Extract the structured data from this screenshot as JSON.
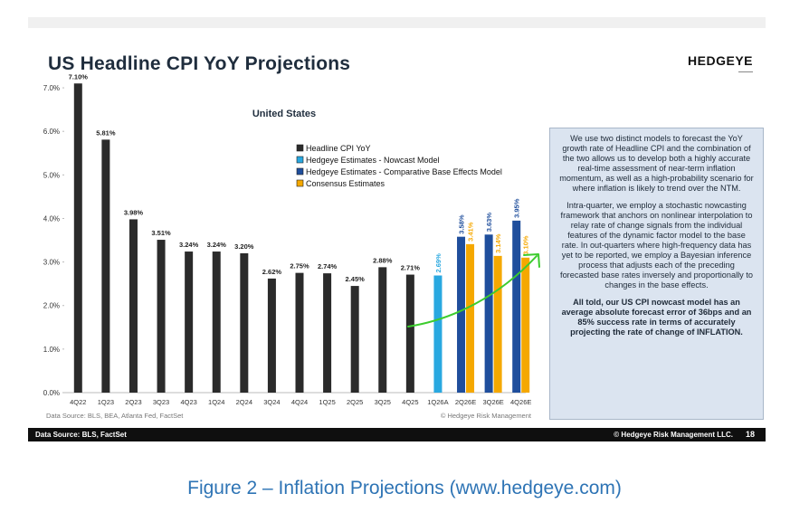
{
  "slide": {
    "title": "US Headline CPI YoY Projections",
    "brand": "HEDGEYE",
    "footer_left": "Data Source: BLS, FactSet",
    "footer_right": "© Hedgeye Risk Management LLC.",
    "page_number": "18"
  },
  "sidebar": {
    "paragraphs": [
      "We use two distinct models to forecast the YoY growth rate of Headline CPI and the combination of the two allows us to develop both a highly accurate real-time assessment of near-term inflation momentum, as well as a high-probability scenario for where inflation is likely to trend over the NTM.",
      "Intra-quarter, we employ a stochastic nowcasting framework that anchors on nonlinear interpolation to relay rate of change signals from the individual features of the dynamic factor model to the base rate. In out-quarters where high-frequency data has yet to be reported, we employ a Bayesian inference process that adjusts each of the preceding forecasted base rates inversely and proportionally to changes in the base effects."
    ],
    "bold_paragraph": "All told, our US CPI nowcast model has an average absolute forecast error of 36bps and an 85% success rate in terms of accurately projecting the rate of change of INFLATION."
  },
  "caption": "Figure 2 – Inflation Projections (www.hedgeye.com)",
  "chart_data": {
    "type": "bar",
    "title": "United States",
    "source_note": "Data Source: BLS, BEA, Atlanta Fed, FactSet",
    "copyright_note": "© Hedgeye Risk Management",
    "categories": [
      "4Q22",
      "1Q23",
      "2Q23",
      "3Q23",
      "4Q23",
      "1Q24",
      "2Q24",
      "3Q24",
      "4Q24",
      "1Q25",
      "2Q25",
      "3Q25",
      "4Q25",
      "1Q26A",
      "2Q26E",
      "3Q26E",
      "4Q26E"
    ],
    "ylim": [
      0,
      7.5
    ],
    "yticks": [
      0,
      1,
      2,
      3,
      4,
      5,
      6,
      7
    ],
    "ytick_labels": [
      "0.0%",
      "1.0%",
      "2.0%",
      "3.0%",
      "4.0%",
      "5.0%",
      "6.0%",
      "7.0%"
    ],
    "legend_position": "top-center",
    "grid": false,
    "series": [
      {
        "name": "Headline CPI YoY",
        "color": "#2b2b2b",
        "values": [
          7.1,
          5.81,
          3.98,
          3.51,
          3.24,
          3.24,
          3.2,
          2.62,
          2.75,
          2.74,
          2.45,
          2.88,
          2.71,
          null,
          null,
          null,
          null
        ],
        "labels": [
          "7.10%",
          "5.81%",
          "3.98%",
          "3.51%",
          "3.24%",
          "3.24%",
          "3.20%",
          "2.62%",
          "2.75%",
          "2.74%",
          "2.45%",
          "2.88%",
          "2.71%",
          "",
          "",
          "",
          ""
        ]
      },
      {
        "name": "Hedgeye Estimates - Nowcast Model",
        "color": "#29a8e0",
        "values": [
          null,
          null,
          null,
          null,
          null,
          null,
          null,
          null,
          null,
          null,
          null,
          null,
          null,
          2.69,
          null,
          null,
          null
        ],
        "labels": [
          "",
          "",
          "",
          "",
          "",
          "",
          "",
          "",
          "",
          "",
          "",
          "",
          "",
          "2.69%",
          "",
          "",
          ""
        ]
      },
      {
        "name": "Hedgeye Estimates - Comparative Base Effects Model",
        "color": "#1f4e9c",
        "values": [
          null,
          null,
          null,
          null,
          null,
          null,
          null,
          null,
          null,
          null,
          null,
          null,
          null,
          null,
          3.58,
          3.63,
          3.95
        ],
        "labels": [
          "",
          "",
          "",
          "",
          "",
          "",
          "",
          "",
          "",
          "",
          "",
          "",
          "",
          "",
          "3.58%",
          "3.63%",
          "3.95%"
        ]
      },
      {
        "name": "Consensus Estimates",
        "color": "#f5a800",
        "values": [
          null,
          null,
          null,
          null,
          null,
          null,
          null,
          null,
          null,
          null,
          null,
          null,
          null,
          null,
          3.41,
          3.14,
          3.1
        ],
        "labels": [
          "",
          "",
          "",
          "",
          "",
          "",
          "",
          "",
          "",
          "",
          "",
          "",
          "",
          "",
          "3.41%",
          "3.14%",
          "3.10%"
        ]
      }
    ]
  }
}
